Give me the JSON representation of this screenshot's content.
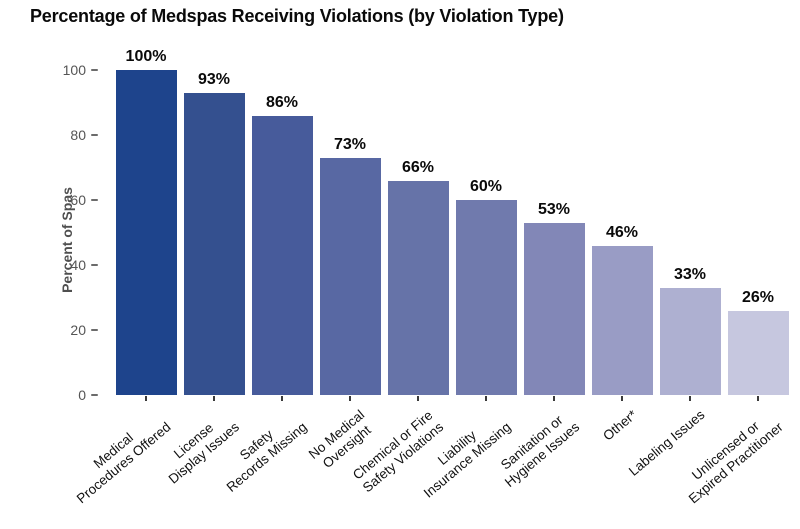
{
  "chart_data": {
    "type": "bar",
    "title": "Percentage of Medspas Receiving Violations (by Violation Type)",
    "xlabel": "",
    "ylabel": "Percent of Spas",
    "ylim": [
      0,
      100
    ],
    "yticks": [
      0,
      20,
      40,
      60,
      80,
      100
    ],
    "grid": false,
    "legend_position": "none",
    "bar_label_rotation_deg": 40,
    "categories": [
      "Medical\nProcedures Offered",
      "License\nDisplay Issues",
      "Safety\nRecords Missing",
      "No Medical\nOversight",
      "Chemical or Fire\nSafety Violations",
      "Liability\nInsurance Missing",
      "Sanitation or\nHygiene Issues",
      "Other*",
      "Labeling Issues",
      "Unlicensed or\nExpired Practitioner"
    ],
    "values": [
      100,
      93,
      86,
      73,
      66,
      60,
      53,
      46,
      33,
      26
    ],
    "value_labels": [
      "100%",
      "93%",
      "86%",
      "73%",
      "66%",
      "60%",
      "53%",
      "46%",
      "33%",
      "26%"
    ],
    "bar_colors": [
      "#1e448c",
      "#34508f",
      "#475b9b",
      "#5868a3",
      "#6673a8",
      "#707aad",
      "#8287b7",
      "#999cc5",
      "#aeb0d1",
      "#c6c7df"
    ]
  },
  "colors": {
    "background": "#ffffff",
    "title_text": "#0a0a0a",
    "axis_label_text": "#4f4f4f",
    "tick_label_text": "#555555",
    "value_label_text": "#0a0a0a"
  }
}
